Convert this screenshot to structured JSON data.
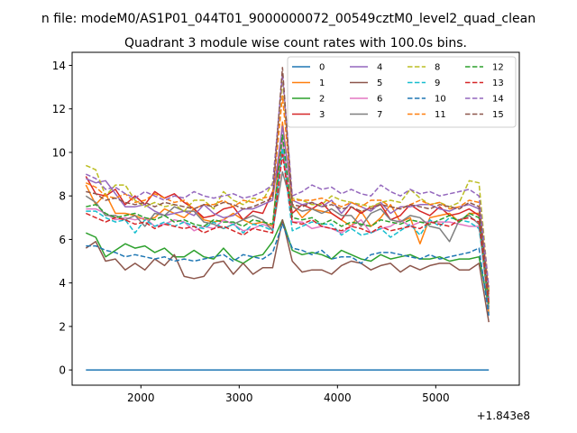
{
  "figure": {
    "suptitle": "n file: modeM0/AS1P01_044T01_9000000072_00549cztM0_level2_quad_clean",
    "offset_text": "+1.843e8"
  },
  "chart_data": {
    "type": "line",
    "title": "Quadrant 3 module wise count rates with 100.0s bins.",
    "xlabel": "",
    "ylabel": "",
    "xlim": [
      1300,
      5850
    ],
    "ylim": [
      -0.7,
      14.6
    ],
    "x_offset": 184300000,
    "xticks": [
      2000,
      3000,
      4000,
      5000
    ],
    "yticks": [
      0,
      2,
      4,
      6,
      8,
      10,
      12,
      14
    ],
    "x_start": 1440,
    "x_step": 100,
    "legend": {
      "location": "top-right",
      "columns": 4
    },
    "grid": false,
    "series": [
      {
        "name": "0",
        "color": "#1f77b4",
        "dashed": false,
        "values": [
          0,
          0,
          0,
          0,
          0,
          0,
          0,
          0,
          0,
          0,
          0,
          0,
          0,
          0,
          0,
          0,
          0,
          0,
          0,
          0,
          0,
          0,
          0,
          0,
          0,
          0,
          0,
          0,
          0,
          0,
          0,
          0,
          0,
          0,
          0,
          0,
          0,
          0,
          0,
          0,
          0,
          0
        ]
      },
      {
        "name": "1",
        "color": "#ff7f0e",
        "dashed": false,
        "values": [
          8.5,
          7.6,
          8.1,
          7.2,
          7.2,
          7.1,
          6.9,
          7.0,
          7.4,
          7.2,
          7.0,
          7.4,
          6.9,
          6.8,
          6.9,
          7.2,
          6.9,
          6.7,
          6.8,
          6.6,
          11.4,
          7.6,
          7.0,
          7.4,
          7.3,
          7.2,
          6.9,
          6.6,
          7.3,
          6.6,
          7.0,
          7.6,
          6.8,
          7.0,
          5.8,
          7.0,
          7.1,
          7.2,
          6.8,
          7.2,
          7.2,
          2.6
        ]
      },
      {
        "name": "2",
        "color": "#2ca02c",
        "dashed": false,
        "values": [
          6.3,
          6.1,
          5.2,
          5.5,
          5.8,
          5.6,
          5.7,
          5.4,
          5.6,
          5.2,
          5.2,
          5.5,
          5.2,
          5.1,
          5.6,
          5.1,
          4.9,
          5.2,
          5.3,
          5.9,
          6.9,
          5.5,
          5.3,
          5.4,
          5.3,
          5.1,
          5.5,
          5.3,
          5.1,
          5.0,
          5.3,
          5.1,
          5.2,
          5.3,
          5.1,
          5.1,
          5.2,
          5.0,
          5.1,
          5.1,
          5.2,
          2.9
        ]
      },
      {
        "name": "3",
        "color": "#d62728",
        "dashed": false,
        "values": [
          8.9,
          8.1,
          8.0,
          8.3,
          7.6,
          8.0,
          7.6,
          8.2,
          7.9,
          8.1,
          7.7,
          7.4,
          7.0,
          7.1,
          7.4,
          7.5,
          6.9,
          7.3,
          7.2,
          8.2,
          10.1,
          7.2,
          7.6,
          7.4,
          7.7,
          7.2,
          6.9,
          7.5,
          7.2,
          7.5,
          7.6,
          6.9,
          7.1,
          7.6,
          7.3,
          7.1,
          7.5,
          7.1,
          7.2,
          7.4,
          7.1,
          3.3
        ]
      },
      {
        "name": "4",
        "color": "#9467bd",
        "dashed": false,
        "values": [
          8.8,
          8.6,
          8.7,
          8.1,
          7.5,
          7.5,
          7.6,
          7.3,
          7.1,
          7.2,
          7.3,
          7.1,
          7.6,
          7.2,
          7.0,
          7.1,
          7.4,
          7.4,
          7.6,
          7.8,
          11.2,
          7.8,
          7.6,
          7.7,
          7.5,
          7.8,
          7.2,
          7.7,
          7.5,
          7.3,
          7.7,
          7.2,
          7.5,
          7.5,
          7.6,
          7.6,
          7.4,
          7.3,
          7.5,
          7.6,
          7.4,
          3.6
        ]
      },
      {
        "name": "5",
        "color": "#8c564b",
        "dashed": false,
        "values": [
          5.6,
          5.9,
          5.0,
          5.1,
          4.6,
          4.9,
          4.6,
          5.1,
          4.8,
          5.3,
          4.3,
          4.2,
          4.3,
          4.9,
          5.0,
          4.4,
          4.9,
          4.4,
          4.7,
          4.7,
          6.9,
          5.0,
          4.5,
          4.6,
          4.6,
          4.4,
          4.8,
          5.0,
          4.9,
          4.6,
          4.8,
          4.9,
          4.5,
          4.8,
          4.6,
          4.8,
          4.9,
          4.9,
          4.6,
          4.6,
          4.9,
          2.2
        ]
      },
      {
        "name": "6",
        "color": "#e377c2",
        "dashed": false,
        "values": [
          7.4,
          7.4,
          7.2,
          6.9,
          7.0,
          6.9,
          7.0,
          6.6,
          6.7,
          6.9,
          6.8,
          6.4,
          6.6,
          6.5,
          6.9,
          6.7,
          6.4,
          6.5,
          6.7,
          6.5,
          10.6,
          6.8,
          6.8,
          6.5,
          6.6,
          6.5,
          6.3,
          6.6,
          6.9,
          6.3,
          6.5,
          6.6,
          6.9,
          6.6,
          6.8,
          6.8,
          6.8,
          6.8,
          6.7,
          6.6,
          6.6,
          3.3
        ]
      },
      {
        "name": "7",
        "color": "#7f7f7f",
        "dashed": false,
        "values": [
          8.0,
          7.7,
          7.1,
          7.1,
          6.9,
          7.1,
          6.6,
          7.2,
          7.1,
          7.5,
          7.3,
          7.3,
          6.8,
          6.7,
          6.5,
          6.7,
          6.9,
          7.1,
          6.9,
          6.4,
          9.1,
          7.5,
          7.3,
          7.4,
          7.2,
          7.4,
          7.1,
          7.1,
          6.6,
          7.2,
          7.4,
          6.9,
          6.8,
          7.1,
          7.0,
          6.6,
          6.5,
          5.9,
          6.9,
          7.1,
          6.7,
          2.8
        ]
      },
      {
        "name": "8",
        "color": "#bcbd22",
        "dashed": true,
        "values": [
          9.4,
          9.2,
          8.0,
          8.5,
          8.5,
          7.8,
          7.5,
          7.7,
          7.5,
          7.6,
          7.3,
          7.8,
          7.8,
          7.4,
          8.2,
          7.8,
          7.6,
          7.9,
          7.8,
          8.6,
          13.3,
          7.9,
          7.8,
          7.6,
          7.6,
          8.0,
          7.8,
          7.7,
          7.6,
          7.5,
          7.7,
          7.8,
          7.7,
          8.3,
          7.9,
          7.6,
          7.7,
          7.5,
          7.7,
          8.7,
          8.6,
          3.7
        ]
      },
      {
        "name": "9",
        "color": "#17becf",
        "dashed": true,
        "values": [
          7.3,
          7.3,
          7.0,
          6.8,
          6.9,
          6.3,
          6.9,
          6.6,
          6.8,
          6.6,
          6.8,
          6.6,
          6.5,
          6.8,
          6.5,
          6.7,
          6.3,
          6.7,
          6.6,
          6.4,
          10.2,
          6.4,
          6.6,
          6.8,
          6.7,
          6.7,
          6.2,
          6.5,
          6.2,
          6.3,
          6.5,
          6.1,
          6.4,
          6.7,
          6.2,
          6.9,
          6.6,
          7.0,
          6.9,
          6.8,
          6.5,
          3.2
        ]
      },
      {
        "name": "10",
        "color": "#1f77b4",
        "dashed": true,
        "values": [
          5.7,
          5.7,
          5.5,
          5.4,
          5.2,
          5.3,
          5.2,
          5.1,
          5.2,
          5.0,
          5.1,
          5.0,
          5.1,
          5.2,
          5.3,
          5.0,
          5.3,
          5.2,
          5.1,
          5.4,
          6.7,
          5.6,
          5.5,
          5.3,
          5.5,
          5.1,
          5.2,
          5.2,
          4.9,
          5.3,
          5.4,
          5.4,
          5.3,
          5.2,
          5.1,
          5.3,
          5.1,
          5.2,
          5.3,
          5.4,
          5.6,
          2.5
        ]
      },
      {
        "name": "11",
        "color": "#ff7f0e",
        "dashed": true,
        "values": [
          8.6,
          8.4,
          8.0,
          7.9,
          8.1,
          7.7,
          7.8,
          8.1,
          7.9,
          7.7,
          7.8,
          7.4,
          7.6,
          7.6,
          7.8,
          7.5,
          7.8,
          7.7,
          7.9,
          8.0,
          12.6,
          7.8,
          7.8,
          7.8,
          7.9,
          7.7,
          7.5,
          7.7,
          7.5,
          7.8,
          7.8,
          7.5,
          7.4,
          7.6,
          7.8,
          7.6,
          7.7,
          7.4,
          7.5,
          7.8,
          7.7,
          3.6
        ]
      },
      {
        "name": "12",
        "color": "#2ca02c",
        "dashed": true,
        "values": [
          7.5,
          7.6,
          7.2,
          7.0,
          7.1,
          7.2,
          7.0,
          6.9,
          7.1,
          6.8,
          6.9,
          6.7,
          6.6,
          6.9,
          6.8,
          6.8,
          6.6,
          6.9,
          6.8,
          6.7,
          10.8,
          7.0,
          6.9,
          7.0,
          6.7,
          6.9,
          6.6,
          6.8,
          6.7,
          6.6,
          6.9,
          6.8,
          6.7,
          6.9,
          6.8,
          6.7,
          6.9,
          7.1,
          6.8,
          7.2,
          7.0,
          3.0
        ]
      },
      {
        "name": "13",
        "color": "#d62728",
        "dashed": true,
        "values": [
          7.2,
          7.0,
          6.8,
          7.0,
          6.9,
          6.7,
          6.8,
          6.5,
          6.7,
          6.6,
          6.5,
          6.6,
          6.3,
          6.5,
          6.6,
          6.4,
          6.2,
          6.5,
          6.4,
          6.3,
          9.9,
          6.8,
          6.7,
          6.9,
          6.6,
          6.5,
          6.4,
          6.6,
          6.5,
          6.3,
          6.6,
          6.4,
          6.5,
          6.6,
          6.5,
          6.8,
          6.7,
          6.6,
          6.9,
          7.0,
          6.8,
          3.1
        ]
      },
      {
        "name": "14",
        "color": "#9467bd",
        "dashed": true,
        "values": [
          9.0,
          8.8,
          8.3,
          8.4,
          8.1,
          7.9,
          8.2,
          8.0,
          7.8,
          8.0,
          7.9,
          8.2,
          8.0,
          7.9,
          8.0,
          8.1,
          7.9,
          8.0,
          8.2,
          8.5,
          13.6,
          8.0,
          8.2,
          8.5,
          8.3,
          8.4,
          8.1,
          8.3,
          8.1,
          8.0,
          8.5,
          8.2,
          8.0,
          8.3,
          8.1,
          8.2,
          8.0,
          8.1,
          8.2,
          8.3,
          8.0,
          3.8
        ]
      },
      {
        "name": "15",
        "color": "#8c564b",
        "dashed": true,
        "values": [
          8.2,
          8.1,
          7.8,
          7.9,
          7.7,
          7.6,
          7.7,
          7.5,
          7.7,
          7.6,
          7.5,
          7.4,
          7.6,
          7.5,
          7.7,
          7.6,
          7.4,
          7.5,
          7.7,
          7.9,
          13.9,
          7.6,
          7.5,
          7.7,
          7.5,
          7.6,
          7.4,
          7.5,
          7.3,
          7.4,
          7.6,
          7.5,
          7.4,
          7.6,
          7.5,
          7.4,
          7.6,
          7.5,
          7.4,
          7.7,
          7.5,
          3.4
        ]
      }
    ]
  }
}
